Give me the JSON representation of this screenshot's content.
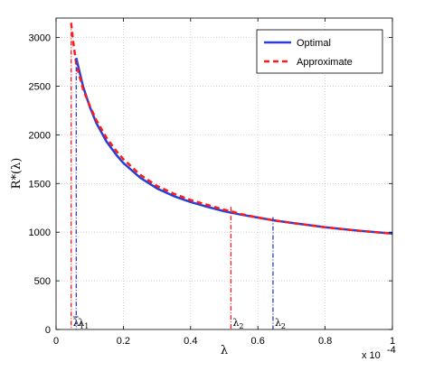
{
  "chart_data": {
    "type": "line",
    "xlabel": "λ",
    "ylabel": "R*(λ)",
    "x_multiplier": "x 10",
    "x_multiplier_exp": "-4",
    "xlim": [
      0,
      1
    ],
    "ylim": [
      0,
      3200
    ],
    "grid": true,
    "legend_position": "top-right",
    "x_ticks": [
      0,
      0.2,
      0.4,
      0.6,
      0.8,
      1
    ],
    "x_tick_labels": [
      "0",
      "0.2",
      "0.4",
      "0.6",
      "0.8",
      "1"
    ],
    "y_ticks": [
      0,
      500,
      1000,
      1500,
      2000,
      2500,
      3000
    ],
    "y_tick_labels": [
      "0",
      "500",
      "1000",
      "1500",
      "2000",
      "2500",
      "3000"
    ],
    "series": [
      {
        "name": "Optimal",
        "color": "#2a3fd6",
        "style": "solid",
        "x": [
          0.06,
          0.08,
          0.1,
          0.12,
          0.15,
          0.18,
          0.2,
          0.25,
          0.3,
          0.35,
          0.4,
          0.45,
          0.5,
          0.55,
          0.6,
          0.65,
          0.7,
          0.8,
          0.9,
          1.0
        ],
        "y": [
          2790,
          2500,
          2290,
          2120,
          1930,
          1790,
          1710,
          1560,
          1450,
          1370,
          1310,
          1260,
          1215,
          1180,
          1150,
          1120,
          1095,
          1050,
          1015,
          985
        ]
      },
      {
        "name": "Approximate",
        "color": "#ff1a1a",
        "style": "dashed",
        "x": [
          0.045,
          0.05,
          0.06,
          0.08,
          0.1,
          0.12,
          0.15,
          0.18,
          0.2,
          0.25,
          0.3,
          0.35,
          0.4,
          0.45,
          0.5,
          0.52,
          0.55,
          0.6,
          0.65,
          0.7,
          0.8,
          0.9,
          1.0
        ],
        "y": [
          3150,
          2980,
          2730,
          2470,
          2300,
          2150,
          1970,
          1830,
          1750,
          1590,
          1475,
          1395,
          1330,
          1280,
          1230,
          1215,
          1185,
          1150,
          1120,
          1095,
          1050,
          1015,
          985
        ]
      }
    ],
    "annotations": [
      {
        "label_main": "λ",
        "label_sub": "1",
        "bar": true,
        "x": 0.045,
        "y_top": 3150,
        "color": "#ff1a1a"
      },
      {
        "label_main": "λ",
        "label_sub": "1",
        "bar": false,
        "x": 0.06,
        "y_top": 2790,
        "color": "#2a3fd6"
      },
      {
        "label_main": "λ",
        "label_sub": "2",
        "bar": false,
        "x": 0.52,
        "y_top": 1260,
        "color": "#ff1a1a"
      },
      {
        "label_main": "λ",
        "label_sub": "2",
        "bar": false,
        "x": 0.645,
        "y_top": 1155,
        "color": "#2a3fd6"
      }
    ]
  }
}
